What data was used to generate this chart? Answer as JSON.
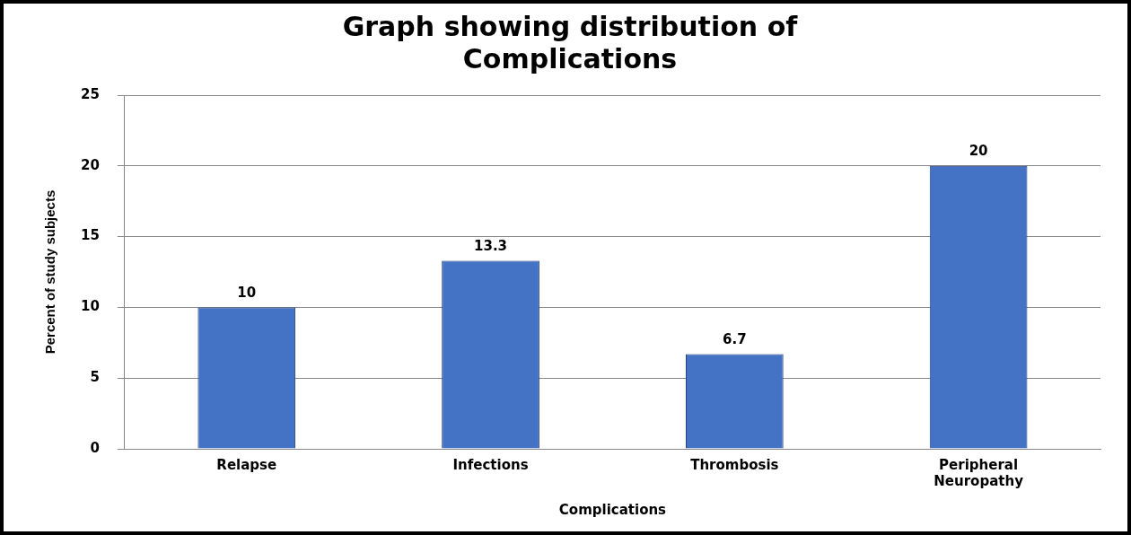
{
  "chart_data": {
    "type": "bar",
    "title": "Graph showing distribution of Complications",
    "xlabel": "Complications",
    "ylabel": "Percent of study subjects",
    "categories": [
      "Relapse",
      "Infections",
      "Thrombosis",
      "Peripheral Neuropathy"
    ],
    "values": [
      10,
      13.3,
      6.7,
      20
    ],
    "color": "#4472c4",
    "ylim": [
      0,
      25
    ],
    "yticks": [
      0,
      5,
      10,
      15,
      20,
      25
    ],
    "grid": "y",
    "legend": false,
    "data_labels": true
  }
}
